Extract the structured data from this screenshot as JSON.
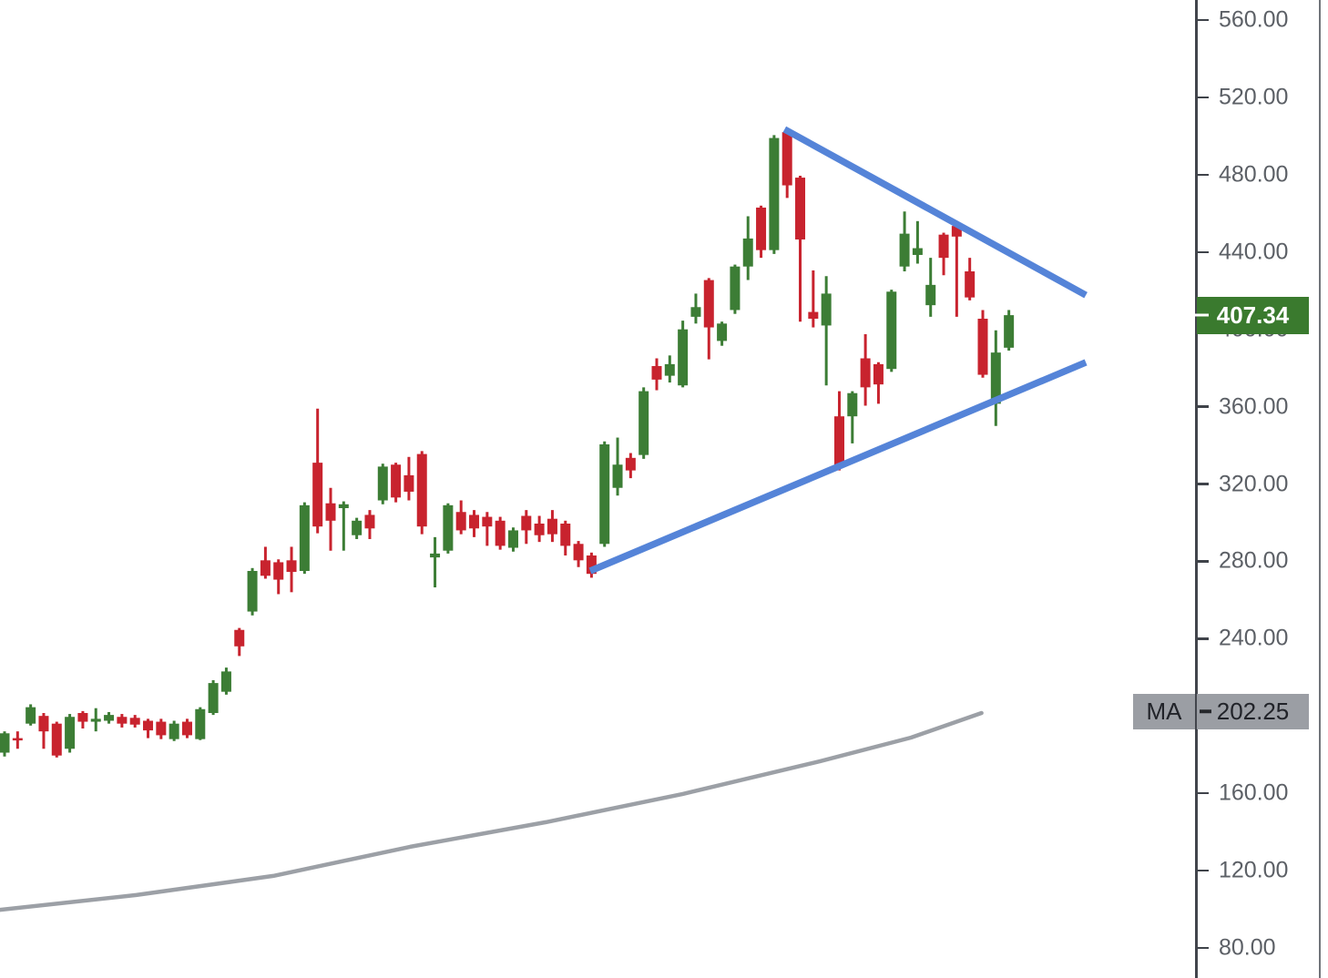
{
  "chart_data": {
    "type": "candlestick",
    "description": "Daily candlestick price chart with a symmetrical-triangle (pennant) drawn in blue trendlines, a gray long-term moving average line below price, and a right-hand price scale.",
    "price_axis": {
      "side": "right",
      "tick_values": [
        560,
        520,
        480,
        440,
        400,
        360,
        320,
        280,
        240,
        160,
        120,
        80
      ],
      "tick_format_decimals": 2,
      "visible_price_range": [
        64.4,
        570.4
      ],
      "last_price": 407.34,
      "ma_value": 202.25
    },
    "grid": false,
    "x_axis_labels_visible": false,
    "legend_position": "none",
    "ohlc_columns": [
      "open",
      "high",
      "low",
      "close"
    ],
    "candles_ohlc": [
      [
        181,
        192,
        179,
        191
      ],
      [
        188.5,
        192,
        183,
        188
      ],
      [
        196,
        206,
        195,
        204.5
      ],
      [
        200,
        201.5,
        183,
        192
      ],
      [
        196,
        197,
        178.5,
        179.5
      ],
      [
        183,
        201,
        181,
        199.5
      ],
      [
        201.5,
        202.5,
        193.5,
        197
      ],
      [
        197,
        204,
        192,
        198.5
      ],
      [
        197.5,
        202,
        196,
        200.5
      ],
      [
        199.5,
        201,
        194,
        196
      ],
      [
        199,
        200.5,
        194,
        195.5
      ],
      [
        197.5,
        198.5,
        188.5,
        192.5
      ],
      [
        197,
        198.5,
        188,
        190
      ],
      [
        188,
        197.5,
        187,
        196
      ],
      [
        197,
        198.5,
        188.5,
        190
      ],
      [
        188,
        204.5,
        187.5,
        203.5
      ],
      [
        201.5,
        218.5,
        200.5,
        217
      ],
      [
        212.5,
        225,
        211,
        223
      ],
      [
        244.5,
        245.5,
        231,
        236
      ],
      [
        254,
        276.5,
        252,
        275
      ],
      [
        280.5,
        287.5,
        271,
        272.5
      ],
      [
        279.5,
        281,
        263,
        270.5
      ],
      [
        280.5,
        287.5,
        264,
        274.5
      ],
      [
        275,
        310.5,
        273.5,
        309
      ],
      [
        331,
        359,
        294.5,
        298
      ],
      [
        310,
        318,
        285.5,
        301
      ],
      [
        307.5,
        311,
        285.5,
        309.5
      ],
      [
        293.5,
        302.5,
        291.5,
        301
      ],
      [
        304,
        306.5,
        291.5,
        297
      ],
      [
        311.5,
        330.5,
        309.5,
        329
      ],
      [
        330,
        331,
        310.5,
        313
      ],
      [
        324.5,
        334,
        311.5,
        316
      ],
      [
        335.5,
        337,
        294,
        298
      ],
      [
        282,
        292.5,
        266.5,
        284
      ],
      [
        285.5,
        310,
        284,
        309
      ],
      [
        305.5,
        311.5,
        294,
        296
      ],
      [
        304,
        306.5,
        292.5,
        297
      ],
      [
        303,
        305.5,
        288,
        298
      ],
      [
        301,
        303,
        286,
        288
      ],
      [
        287,
        297.5,
        285,
        296
      ],
      [
        303.5,
        306.5,
        289,
        296
      ],
      [
        299.5,
        303.5,
        290,
        293.5
      ],
      [
        302,
        306.5,
        290,
        294
      ],
      [
        299.5,
        301,
        283,
        288
      ],
      [
        289,
        290.5,
        277,
        280.5
      ],
      [
        283,
        284.5,
        271.5,
        273.5
      ],
      [
        289,
        342,
        287.5,
        340.5
      ],
      [
        318,
        344,
        314,
        330
      ],
      [
        333.5,
        336,
        323,
        327
      ],
      [
        335,
        370,
        333,
        368
      ],
      [
        381,
        385,
        368.5,
        374
      ],
      [
        376,
        386.5,
        372.5,
        382
      ],
      [
        371,
        404.5,
        370,
        400
      ],
      [
        406.5,
        418.5,
        403,
        411.5
      ],
      [
        425.5,
        426.5,
        384.5,
        401
      ],
      [
        394,
        404,
        391.5,
        403
      ],
      [
        410,
        433.5,
        408,
        432.5
      ],
      [
        432.5,
        458.5,
        425.5,
        447
      ],
      [
        463,
        464,
        437,
        441
      ],
      [
        441,
        500.5,
        439,
        499
      ],
      [
        502,
        503,
        468,
        474.5
      ],
      [
        478.5,
        479.5,
        404,
        446.5
      ],
      [
        409,
        430.5,
        401,
        405.5
      ],
      [
        402,
        427.5,
        371,
        418.5
      ],
      [
        355,
        368,
        327,
        329.5
      ],
      [
        355,
        368,
        341,
        367
      ],
      [
        385,
        397.5,
        360.5,
        370
      ],
      [
        382,
        383,
        361.5,
        371.5
      ],
      [
        379.5,
        420.5,
        378,
        419.5
      ],
      [
        432.5,
        461,
        430,
        449.5
      ],
      [
        438.5,
        456,
        434,
        442
      ],
      [
        412.5,
        437,
        406.5,
        423
      ],
      [
        449,
        450,
        428,
        437
      ],
      [
        453.5,
        454.5,
        406.5,
        448
      ],
      [
        430,
        437,
        415,
        416.5
      ],
      [
        405.5,
        410,
        375,
        376.5
      ],
      [
        361.5,
        399.5,
        350,
        388
      ],
      [
        390.5,
        410,
        389,
        407.34
      ]
    ],
    "ma_line_points_index_price": [
      [
        -0.35,
        99.7
      ],
      [
        10.1,
        107.3
      ],
      [
        20.6,
        117.2
      ],
      [
        31.1,
        132.3
      ],
      [
        41.5,
        145.0
      ],
      [
        52.0,
        159.6
      ],
      [
        62.5,
        176.5
      ],
      [
        69.5,
        188.8
      ],
      [
        74.9,
        201.5
      ]
    ],
    "trendlines": [
      {
        "name": "upper",
        "from_index": 59.8,
        "from_price": 503.5,
        "to_index": 82.9,
        "to_price": 417.7
      },
      {
        "name": "lower",
        "from_index": 44.9,
        "from_price": 275.0,
        "to_index": 82.9,
        "to_price": 382.9
      }
    ]
  },
  "badges": {
    "last_price_label": "407.34",
    "ma_label": "MA",
    "ma_value_label": "202.25"
  },
  "colors": {
    "background": "#FFFFFF",
    "up_candle": "#3C7D35",
    "down_candle": "#C8232E",
    "trendline_blue": "#5584D8",
    "ma_line_gray": "#9CA0A6",
    "axis_line": "#42454C",
    "right_border": "#70747A",
    "tick_mark": "#3F434A",
    "tick_text": "#5C6066",
    "last_badge_bg": "#3A7A2E",
    "last_badge_text": "#FFFFFF",
    "last_badge_dash": "#FFFFFF",
    "ma_badge_bg": "#9B9EA4",
    "ma_badge_text": "#212329",
    "ma_badge_dash": "#26282C"
  }
}
